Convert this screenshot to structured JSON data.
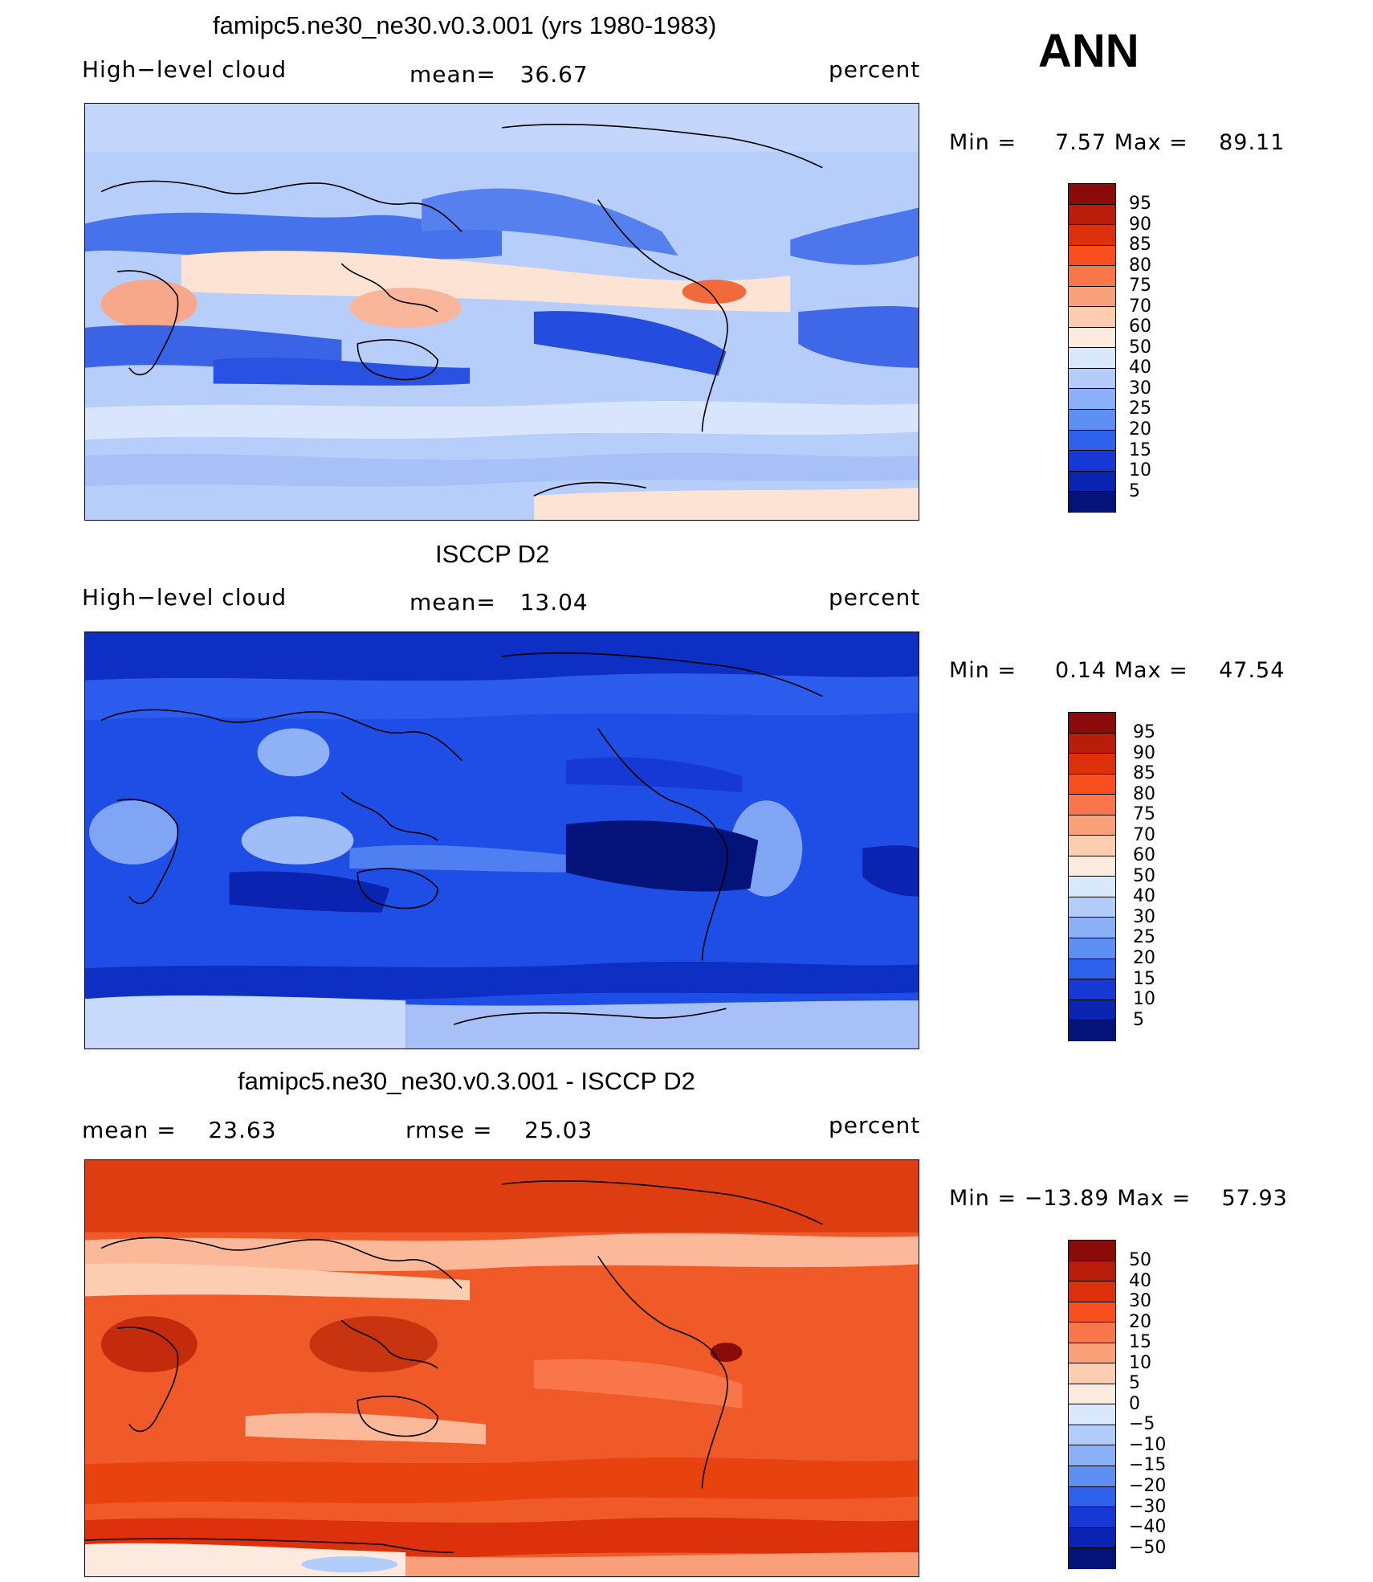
{
  "season": "ANN",
  "units": "percent",
  "panels": [
    {
      "title": "famipc5.ne30_ne30.v0.3.001 (yrs 1980-1983)",
      "left_label": "High−level cloud",
      "center_label": "mean=   36.67",
      "right_label": "percent",
      "stats": "Min =     7.57 Max =    89.11",
      "colorbar_levels": [
        "95",
        "90",
        "85",
        "80",
        "75",
        "70",
        "60",
        "50",
        "40",
        "30",
        "25",
        "20",
        "15",
        "10",
        "5"
      ],
      "colors": {
        "base": "#b7cdfa",
        "land": "#c4d6fb"
      }
    },
    {
      "title": "ISCCP D2",
      "left_label": "High−level cloud",
      "center_label": "mean=   13.04",
      "right_label": "percent",
      "stats": "Min =     0.14 Max =    47.54",
      "colorbar_levels": [
        "95",
        "90",
        "85",
        "80",
        "75",
        "70",
        "60",
        "50",
        "40",
        "30",
        "25",
        "20",
        "15",
        "10",
        "5"
      ],
      "colors": {
        "base": "#1e4ee6",
        "land": "#2f5ef0"
      }
    },
    {
      "title": "famipc5.ne30_ne30.v0.3.001 - ISCCP D2",
      "left_label": "mean =    23.63",
      "center_label": "rmse =    25.03",
      "right_label": "percent",
      "stats": "Min = −13.89 Max =    57.93",
      "colorbar_levels": [
        "50",
        "40",
        "30",
        "20",
        "15",
        "10",
        "5",
        "0",
        "−5",
        "−10",
        "−15",
        "−20",
        "−30",
        "−40",
        "−50"
      ],
      "colors": {
        "base": "#f05a28",
        "land": "#f26a35"
      }
    }
  ],
  "colorbar_colors": [
    "#8b0a0a",
    "#b81d0c",
    "#dd300d",
    "#f7501e",
    "#f9764a",
    "#fba17a",
    "#fdcdb2",
    "#fdeadf",
    "#dae8fb",
    "#b2cdf9",
    "#8bb0f7",
    "#5e8ff3",
    "#2f62ec",
    "#1638d5",
    "#0a23b0",
    "#03137a"
  ]
}
